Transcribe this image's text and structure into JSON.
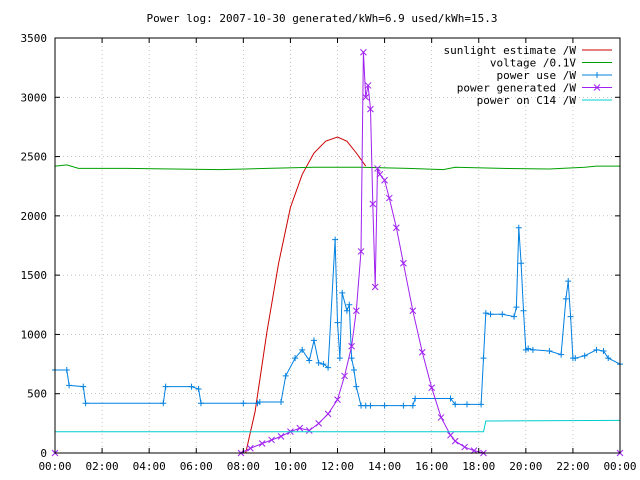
{
  "chart_data": {
    "type": "line",
    "title": "Power log: 2007-10-30 generated/kWh=6.9 used/kWh=15.3",
    "xlabel": "",
    "ylabel": "",
    "xlim": [
      0,
      24
    ],
    "ylim": [
      0,
      3500
    ],
    "grid": true,
    "legend_position": "top-right",
    "x_ticks": [
      "00:00",
      "02:00",
      "04:00",
      "06:00",
      "08:00",
      "10:00",
      "12:00",
      "14:00",
      "16:00",
      "18:00",
      "20:00",
      "22:00",
      "00:00"
    ],
    "y_ticks": [
      "0",
      "500",
      "1000",
      "1500",
      "2000",
      "2500",
      "3000",
      "3500"
    ],
    "series": [
      {
        "name": "sunlight estimate /W",
        "color": "#cc0000",
        "style": "line",
        "x": [
          0,
          8.1,
          8.5,
          9.0,
          9.5,
          10.0,
          10.5,
          11.0,
          11.5,
          12.0,
          12.4,
          12.8,
          13.2
        ],
        "y": [
          0,
          0,
          350,
          1020,
          1600,
          2070,
          2350,
          2530,
          2630,
          2665,
          2630,
          2530,
          2420
        ]
      },
      {
        "name": "voltage /0.1V",
        "color": "#00a000",
        "style": "line",
        "x": [
          0,
          0.5,
          1.0,
          3.0,
          5.0,
          7.0,
          9.0,
          11.0,
          13.0,
          15.0,
          16.5,
          17.0,
          19.0,
          21.0,
          22.5,
          23.0,
          24.0
        ],
        "y": [
          2420,
          2430,
          2400,
          2400,
          2395,
          2390,
          2400,
          2410,
          2410,
          2400,
          2390,
          2410,
          2400,
          2395,
          2410,
          2420,
          2420
        ]
      },
      {
        "name": "power use /W",
        "color": "#0080e0",
        "style": "linepoints",
        "x": [
          0,
          0.5,
          0.6,
          1.2,
          1.3,
          4.6,
          4.7,
          5.8,
          6.1,
          6.2,
          8.0,
          8.6,
          8.7,
          9.6,
          9.8,
          10.2,
          10.5,
          10.8,
          11.0,
          11.2,
          11.4,
          11.6,
          11.9,
          12.0,
          12.1,
          12.2,
          12.4,
          12.5,
          12.6,
          12.7,
          12.8,
          13.0,
          13.2,
          13.4,
          14.0,
          14.8,
          15.2,
          15.3,
          16.8,
          17.0,
          17.5,
          18.1,
          18.2,
          18.3,
          18.5,
          19.0,
          19.5,
          19.6,
          19.7,
          19.8,
          19.9,
          20.0,
          20.1,
          20.3,
          21.0,
          21.5,
          21.7,
          21.8,
          21.9,
          22.0,
          22.1,
          22.5,
          23.0,
          23.3,
          23.5,
          24.0
        ],
        "y": [
          700,
          700,
          570,
          560,
          420,
          420,
          560,
          560,
          540,
          420,
          420,
          420,
          430,
          430,
          650,
          800,
          870,
          780,
          950,
          760,
          750,
          720,
          1800,
          1100,
          800,
          1350,
          1200,
          1250,
          800,
          700,
          560,
          400,
          400,
          400,
          400,
          400,
          400,
          460,
          460,
          410,
          410,
          410,
          800,
          1180,
          1170,
          1170,
          1150,
          1230,
          1900,
          1600,
          1200,
          870,
          880,
          870,
          860,
          830,
          1300,
          1450,
          1150,
          800,
          800,
          820,
          870,
          860,
          800,
          750
        ]
      },
      {
        "name": "power generated /W",
        "color": "#a020f0",
        "style": "linepoints",
        "x": [
          0,
          7.9,
          8.3,
          8.8,
          9.2,
          9.6,
          10.0,
          10.4,
          10.8,
          11.2,
          11.6,
          12.0,
          12.3,
          12.6,
          12.8,
          13.0,
          13.1,
          13.2,
          13.3,
          13.4,
          13.5,
          13.6,
          13.7,
          13.8,
          14.0,
          14.2,
          14.5,
          14.8,
          15.2,
          15.6,
          16.0,
          16.4,
          16.8,
          17.0,
          17.4,
          17.8,
          18.2,
          24.0
        ],
        "y": [
          0,
          0,
          40,
          80,
          110,
          140,
          180,
          210,
          190,
          250,
          330,
          450,
          650,
          900,
          1200,
          1700,
          3380,
          3000,
          3100,
          2900,
          2100,
          1400,
          2400,
          2350,
          2300,
          2150,
          1900,
          1600,
          1200,
          850,
          550,
          300,
          150,
          100,
          50,
          20,
          0,
          0
        ]
      },
      {
        "name": "power on C14 /W",
        "color": "#00cccc",
        "style": "line",
        "x": [
          0,
          18.2,
          18.3,
          24.0
        ],
        "y": [
          180,
          180,
          270,
          275
        ]
      }
    ]
  }
}
